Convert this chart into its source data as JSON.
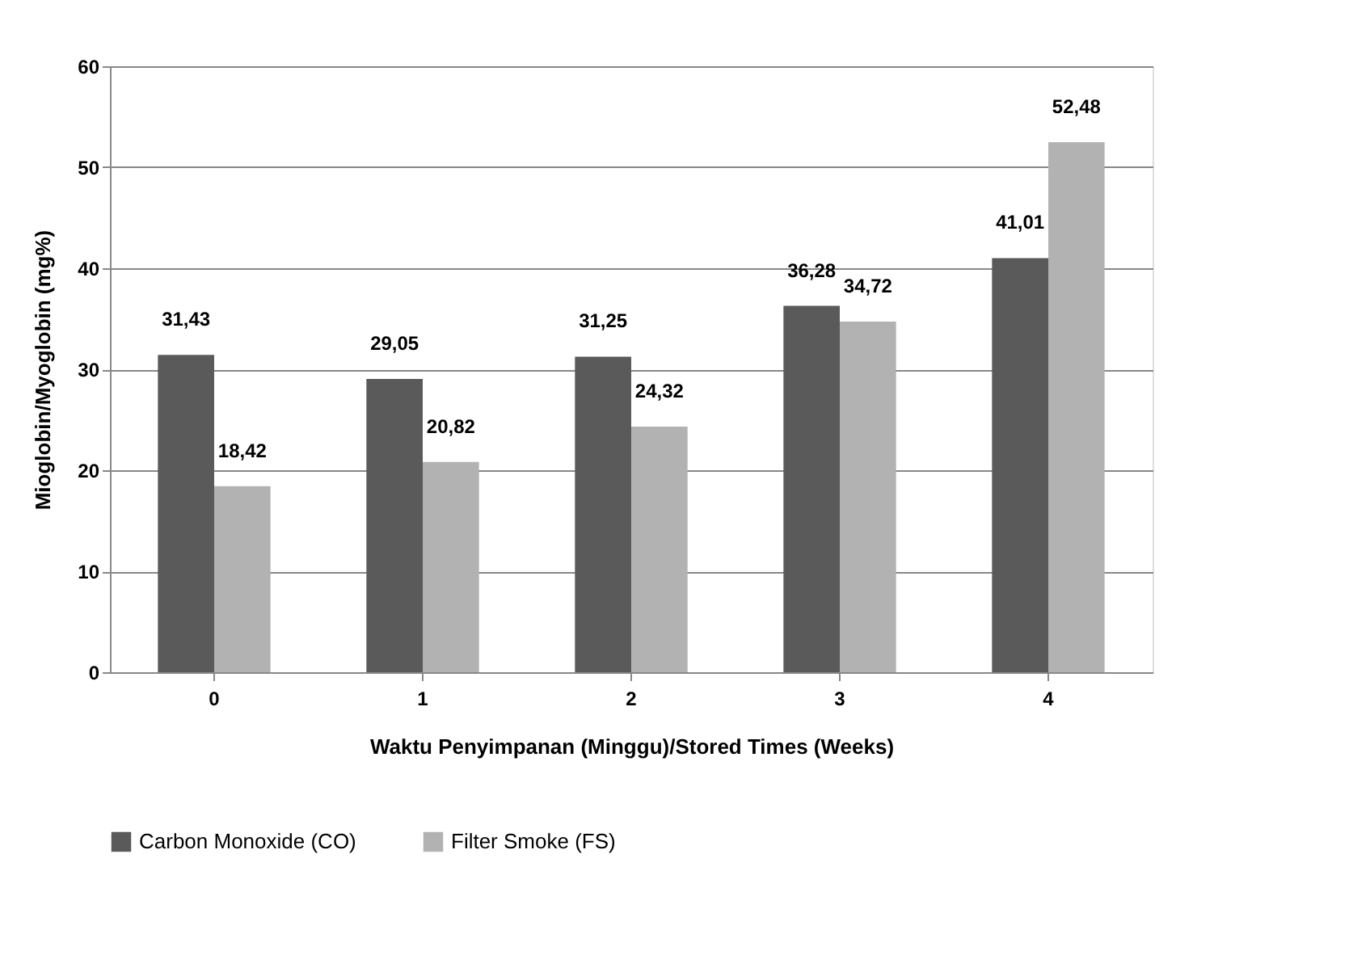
{
  "chart_data": {
    "type": "bar",
    "xlabel": "Waktu Penyimpanan (Minggu)/Stored Times (Weeks)",
    "ylabel": "Mioglobin/Myoglobin (mg%)",
    "categories": [
      "0",
      "1",
      "2",
      "3",
      "4"
    ],
    "series": [
      {
        "name": "Carbon Monoxide (CO)",
        "color": "#5a5a5a",
        "values": [
          31.43,
          29.05,
          31.25,
          36.28,
          41.01
        ],
        "value_labels": [
          "31,43",
          "29,05",
          "31,25",
          "36,28",
          "41,01"
        ]
      },
      {
        "name": "Filter Smoke (FS)",
        "color": "#b2b2b2",
        "values": [
          18.42,
          20.82,
          24.32,
          34.72,
          52.48
        ],
        "value_labels": [
          "18,42",
          "20,82",
          "24,32",
          "34,72",
          "52,48"
        ]
      }
    ],
    "ylim": [
      0,
      60
    ],
    "yticks": [
      0,
      10,
      20,
      30,
      40,
      50,
      60
    ],
    "grid": "y",
    "legend": "bottom"
  }
}
